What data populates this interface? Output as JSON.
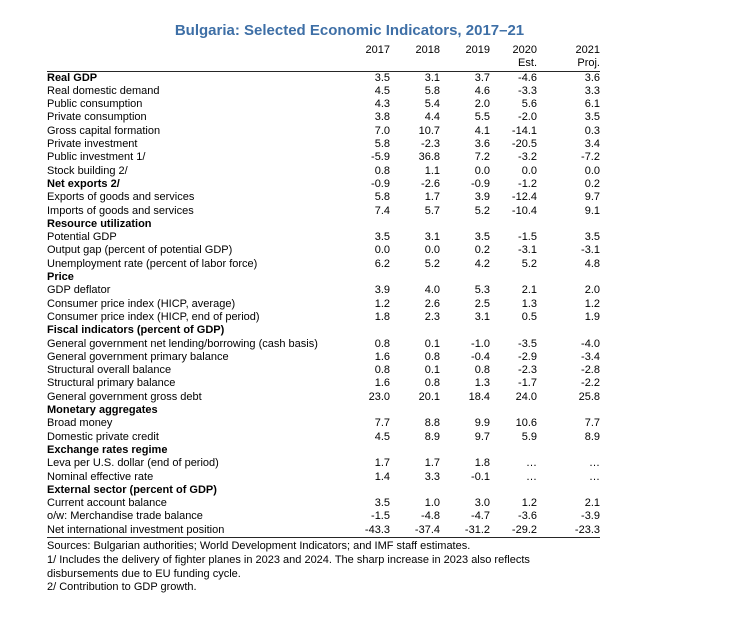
{
  "title": "Bulgaria: Selected Economic Indicators, 2017–21",
  "colors": {
    "title_blue": "#3E6FA6",
    "text": "#000000",
    "rule": "#262626",
    "background": "#FFFFFF"
  },
  "table": {
    "columns": [
      "2017",
      "2018",
      "2019",
      "2020",
      "2021"
    ],
    "column_sub": [
      "",
      "",
      "",
      "Est.",
      "Proj."
    ],
    "rows": [
      {
        "label": "Real GDP",
        "bold": true,
        "indent": 0,
        "values": [
          "3.5",
          "3.1",
          "3.7",
          "-4.6",
          "3.6"
        ]
      },
      {
        "label": "Real domestic demand",
        "bold": false,
        "indent": 1,
        "values": [
          "4.5",
          "5.8",
          "4.6",
          "-3.3",
          "3.3"
        ]
      },
      {
        "label": "Public consumption",
        "bold": false,
        "indent": 2,
        "values": [
          "4.3",
          "5.4",
          "2.0",
          "5.6",
          "6.1"
        ]
      },
      {
        "label": "Private consumption",
        "bold": false,
        "indent": 2,
        "values": [
          "3.8",
          "4.4",
          "5.5",
          "-2.0",
          "3.5"
        ]
      },
      {
        "label": "Gross capital formation",
        "bold": false,
        "indent": 2,
        "values": [
          "7.0",
          "10.7",
          "4.1",
          "-14.1",
          "0.3"
        ]
      },
      {
        "label": "Private investment",
        "bold": false,
        "indent": 3,
        "values": [
          "5.8",
          "-2.3",
          "3.6",
          "-20.5",
          "3.4"
        ]
      },
      {
        "label": "Public investment 1/",
        "bold": false,
        "indent": 3,
        "values": [
          "-5.9",
          "36.8",
          "7.2",
          "-3.2",
          "-7.2"
        ]
      },
      {
        "label": "Stock building 2/",
        "bold": false,
        "indent": 3,
        "values": [
          "0.8",
          "1.1",
          "0.0",
          "0.0",
          "0.0"
        ]
      },
      {
        "label": "Net exports 2/",
        "bold": true,
        "indent": 0,
        "values": [
          "-0.9",
          "-2.6",
          "-0.9",
          "-1.2",
          "0.2"
        ]
      },
      {
        "label": "Exports of goods and services",
        "bold": false,
        "indent": 1,
        "values": [
          "5.8",
          "1.7",
          "3.9",
          "-12.4",
          "9.7"
        ]
      },
      {
        "label": "Imports of goods and services",
        "bold": false,
        "indent": 1,
        "values": [
          "7.4",
          "5.7",
          "5.2",
          "-10.4",
          "9.1"
        ]
      },
      {
        "label": "Resource utilization",
        "bold": true,
        "indent": 0,
        "values": [
          "",
          "",
          "",
          "",
          ""
        ]
      },
      {
        "label": "Potential GDP",
        "bold": false,
        "indent": 1,
        "values": [
          "3.5",
          "3.1",
          "3.5",
          "-1.5",
          "3.5"
        ]
      },
      {
        "label": "Output gap (percent of potential GDP)",
        "bold": false,
        "indent": 1,
        "values": [
          "0.0",
          "0.0",
          "0.2",
          "-3.1",
          "-3.1"
        ]
      },
      {
        "label": "Unemployment rate (percent of labor force)",
        "bold": false,
        "indent": 1,
        "values": [
          "6.2",
          "5.2",
          "4.2",
          "5.2",
          "4.8"
        ]
      },
      {
        "label": "Price",
        "bold": true,
        "indent": 0,
        "values": [
          "",
          "",
          "",
          "",
          ""
        ]
      },
      {
        "label": "GDP deflator",
        "bold": false,
        "indent": 1,
        "values": [
          "3.9",
          "4.0",
          "5.3",
          "2.1",
          "2.0"
        ]
      },
      {
        "label": "Consumer price index (HICP, average)",
        "bold": false,
        "indent": 1,
        "values": [
          "1.2",
          "2.6",
          "2.5",
          "1.3",
          "1.2"
        ]
      },
      {
        "label": "Consumer price index (HICP, end of period)",
        "bold": false,
        "indent": 1,
        "values": [
          "1.8",
          "2.3",
          "3.1",
          "0.5",
          "1.9"
        ]
      },
      {
        "label": "Fiscal indicators (percent of GDP)",
        "bold": true,
        "indent": 0,
        "values": [
          "",
          "",
          "",
          "",
          ""
        ]
      },
      {
        "label": "General government net lending/borrowing (cash basis)",
        "bold": false,
        "indent": 1,
        "values": [
          "0.8",
          "0.1",
          "-1.0",
          "-3.5",
          "-4.0"
        ]
      },
      {
        "label": "General government primary balance",
        "bold": false,
        "indent": 1,
        "values": [
          "1.6",
          "0.8",
          "-0.4",
          "-2.9",
          "-3.4"
        ]
      },
      {
        "label": "Structural overall balance",
        "bold": false,
        "indent": 1,
        "values": [
          "0.8",
          "0.1",
          "0.8",
          "-2.3",
          "-2.8"
        ]
      },
      {
        "label": "Structural primary balance",
        "bold": false,
        "indent": 1,
        "values": [
          "1.6",
          "0.8",
          "1.3",
          "-1.7",
          "-2.2"
        ]
      },
      {
        "label": "General government gross debt",
        "bold": false,
        "indent": 1,
        "values": [
          "23.0",
          "20.1",
          "18.4",
          "24.0",
          "25.8"
        ]
      },
      {
        "label": "Monetary aggregates",
        "bold": true,
        "indent": 0,
        "values": [
          "",
          "",
          "",
          "",
          ""
        ]
      },
      {
        "label": "Broad money",
        "bold": false,
        "indent": 1,
        "values": [
          "7.7",
          "8.8",
          "9.9",
          "10.6",
          "7.7"
        ]
      },
      {
        "label": "Domestic private credit",
        "bold": false,
        "indent": 1,
        "values": [
          "4.5",
          "8.9",
          "9.7",
          "5.9",
          "8.9"
        ]
      },
      {
        "label": "Exchange rates regime",
        "bold": true,
        "indent": 0,
        "values": [
          "",
          "",
          "",
          "",
          ""
        ]
      },
      {
        "label": "Leva per U.S. dollar (end of period)",
        "bold": false,
        "indent": 1,
        "values": [
          "1.7",
          "1.7",
          "1.8",
          "…",
          "…"
        ]
      },
      {
        "label": "Nominal effective rate",
        "bold": false,
        "indent": 1,
        "values": [
          "1.4",
          "3.3",
          "-0.1",
          "…",
          "…"
        ]
      },
      {
        "label": "External sector (percent of GDP)",
        "bold": true,
        "indent": 0,
        "values": [
          "",
          "",
          "",
          "",
          ""
        ]
      },
      {
        "label": "Current account balance",
        "bold": false,
        "indent": 1,
        "values": [
          "3.5",
          "1.0",
          "3.0",
          "1.2",
          "2.1"
        ]
      },
      {
        "label": "o/w: Merchandise trade balance",
        "bold": false,
        "indent": 2,
        "values": [
          "-1.5",
          "-4.8",
          "-4.7",
          "-3.6",
          "-3.9"
        ]
      },
      {
        "label": "Net international investment position",
        "bold": false,
        "indent": 1,
        "values": [
          "-43.3",
          "-37.4",
          "-31.2",
          "-29.2",
          "-23.3"
        ]
      }
    ]
  },
  "notes": {
    "sources": "Sources: Bulgarian authorities; World Development Indicators; and IMF staff estimates.",
    "footnote_lines": [
      "1/ Includes the delivery of fighter planes in 2023 and 2024. The sharp increase in 2023 also reflects",
      "disbursements due to EU funding cycle.",
      "2/ Contribution to GDP growth."
    ]
  }
}
